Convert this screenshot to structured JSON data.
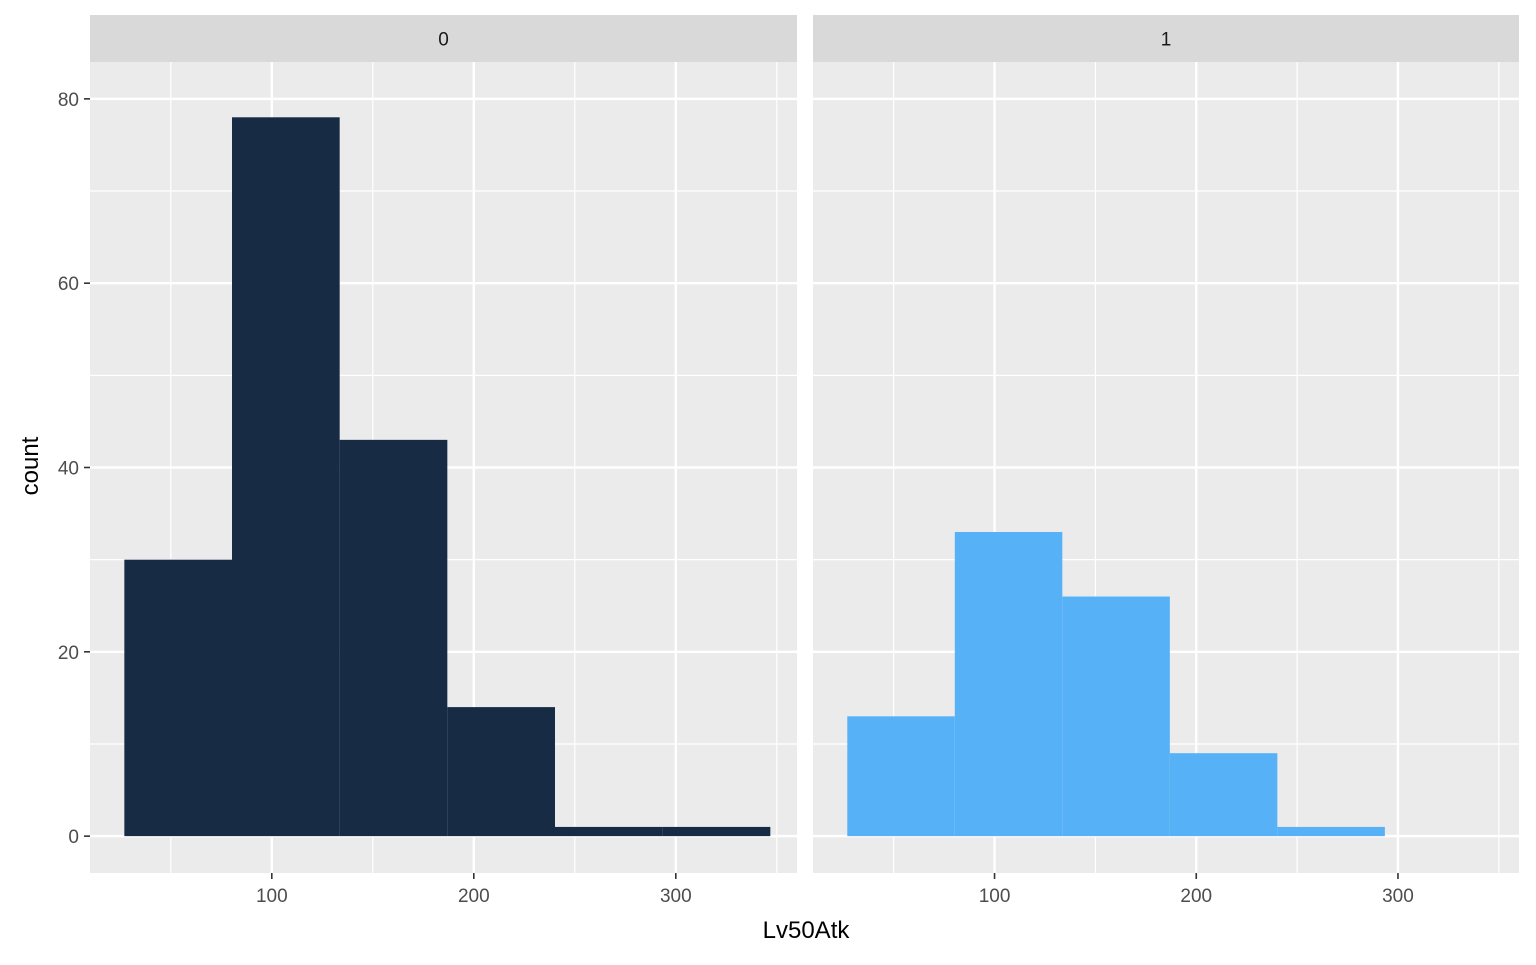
{
  "chart_data": {
    "type": "bar",
    "subtype": "faceted-histogram",
    "xlabel": "Lv50Atk",
    "ylabel": "count",
    "xlim": [
      10,
      360
    ],
    "ylim": [
      -4,
      84
    ],
    "x_ticks": [
      100,
      200,
      300
    ],
    "y_ticks": [
      0,
      20,
      40,
      60,
      80
    ],
    "grid": true,
    "legend": "none",
    "bin_edges": [
      27,
      80.3,
      133.6,
      186.9,
      240.2,
      293.5,
      346.8
    ],
    "panels": [
      {
        "facet": "0",
        "color": "#172B45",
        "values": [
          30,
          78,
          43,
          14,
          1,
          1
        ]
      },
      {
        "facet": "1",
        "color": "#56B1F7",
        "values": [
          13,
          33,
          26,
          9,
          1,
          0
        ]
      }
    ]
  }
}
